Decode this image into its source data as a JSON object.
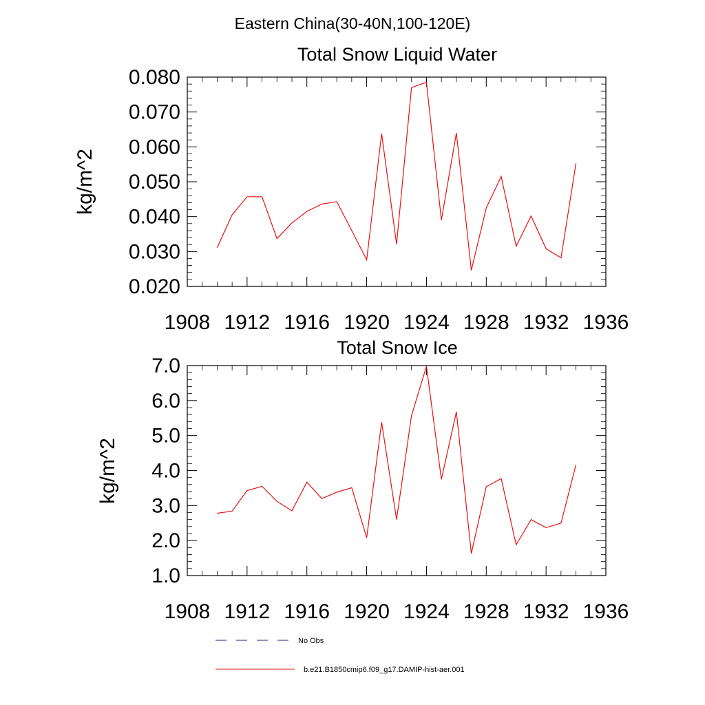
{
  "figure": {
    "title": "Eastern China(30-40N,100-120E)",
    "legend": [
      {
        "label": "No Obs",
        "color": "#1e1e8c",
        "style": "dashed"
      },
      {
        "label": "b.e21.B1850cmip6.f09_g17.DAMIP-hist-aer.001",
        "color": "#e81010",
        "style": "solid"
      }
    ]
  },
  "chart_data": [
    {
      "type": "line",
      "title": "Total Snow Liquid Water",
      "ylabel": "kg/m^2",
      "xlabel": "",
      "xlim": [
        1908,
        1936
      ],
      "ylim": [
        0.02,
        0.08
      ],
      "x_ticks": [
        "1908",
        "1912",
        "1916",
        "1920",
        "1924",
        "1928",
        "1932",
        "1936"
      ],
      "y_ticks": [
        "0.020",
        "0.030",
        "0.040",
        "0.050",
        "0.060",
        "0.070",
        "0.080"
      ],
      "x": [
        1910,
        1911,
        1912,
        1913,
        1914,
        1915,
        1916,
        1917,
        1918,
        1919,
        1920,
        1921,
        1922,
        1923,
        1924,
        1925,
        1926,
        1927,
        1928,
        1929,
        1930,
        1931,
        1932,
        1933,
        1934
      ],
      "series": [
        {
          "name": "b.e21.B1850cmip6.f09_g17.DAMIP-hist-aer.001",
          "color": "#e81010",
          "values": [
            0.0311,
            0.0405,
            0.0457,
            0.0457,
            0.0337,
            0.0382,
            0.0415,
            0.0436,
            0.0443,
            0.036,
            0.0276,
            0.0638,
            0.0321,
            0.077,
            0.0785,
            0.039,
            0.064,
            0.0246,
            0.0425,
            0.0515,
            0.0315,
            0.0402,
            0.0308,
            0.0282,
            0.0553
          ]
        }
      ]
    },
    {
      "type": "line",
      "title": "Total Snow Ice",
      "ylabel": "kg/m^2",
      "xlabel": "",
      "xlim": [
        1908,
        1936
      ],
      "ylim": [
        1.0,
        7.0
      ],
      "x_ticks": [
        "1908",
        "1912",
        "1916",
        "1920",
        "1924",
        "1928",
        "1932",
        "1936"
      ],
      "y_ticks": [
        "1.0",
        "2.0",
        "3.0",
        "4.0",
        "5.0",
        "6.0",
        "7.0"
      ],
      "x": [
        1910,
        1911,
        1912,
        1913,
        1914,
        1915,
        1916,
        1917,
        1918,
        1919,
        1920,
        1921,
        1922,
        1923,
        1924,
        1925,
        1926,
        1927,
        1928,
        1929,
        1930,
        1931,
        1932,
        1933,
        1934
      ],
      "series": [
        {
          "name": "b.e21.B1850cmip6.f09_g17.DAMIP-hist-aer.001",
          "color": "#e81010",
          "values": [
            2.78,
            2.84,
            3.43,
            3.55,
            3.12,
            2.85,
            3.67,
            3.2,
            3.38,
            3.51,
            2.08,
            5.38,
            2.6,
            5.57,
            6.98,
            3.75,
            5.68,
            1.63,
            3.54,
            3.77,
            1.88,
            2.6,
            2.37,
            2.5,
            4.17
          ]
        }
      ]
    }
  ]
}
